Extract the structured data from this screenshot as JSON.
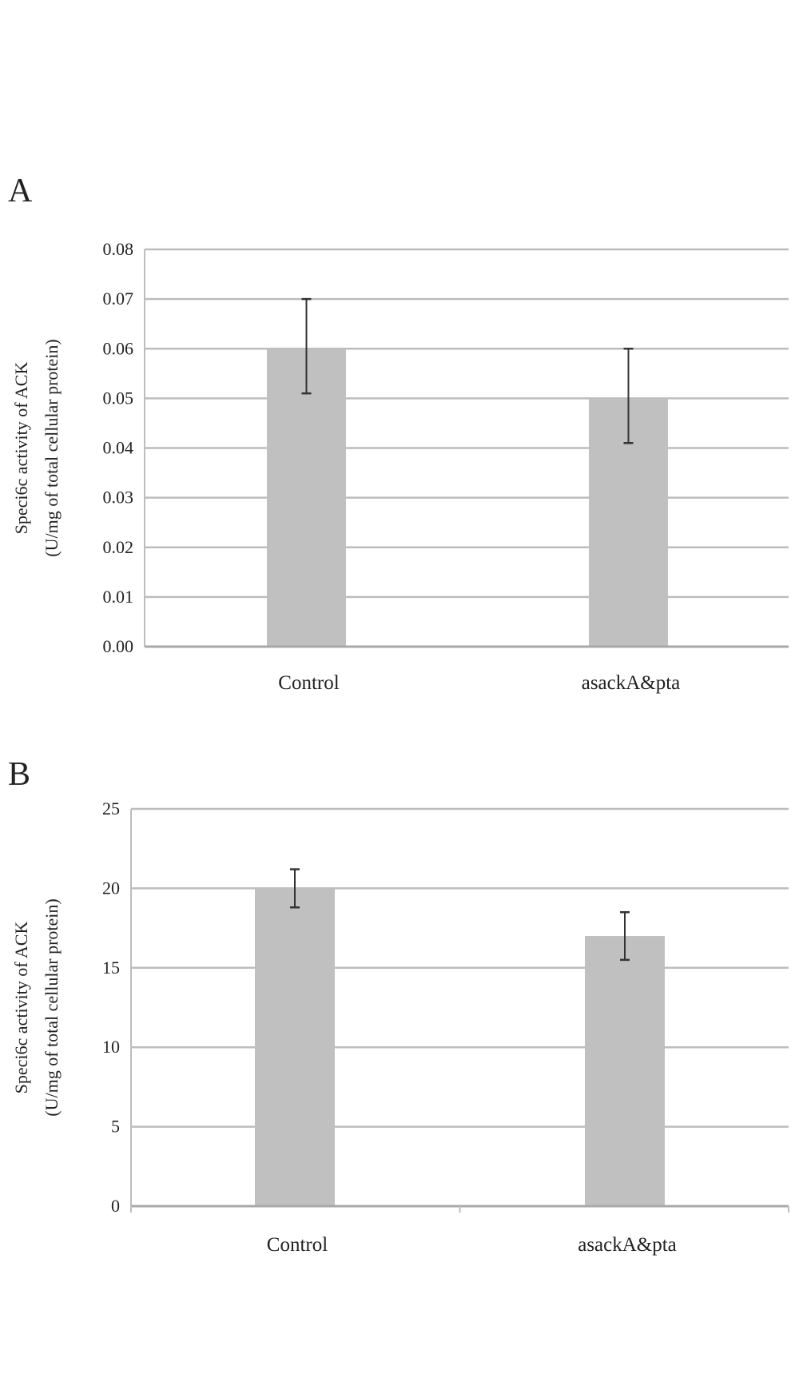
{
  "chart_data": [
    {
      "panel": "A",
      "type": "bar",
      "categories": [
        "Control",
        "asackA&pta"
      ],
      "values": [
        0.06,
        0.05
      ],
      "error_low": [
        0.051,
        0.041
      ],
      "error_high": [
        0.07,
        0.06
      ],
      "ylabel_line1": "Speci6c activity of ACK",
      "ylabel_line2": "(U/mg of total cellular protein)",
      "xlabel": "",
      "ylim": [
        0,
        0.08
      ],
      "yticks": [
        "0.00",
        "0.01",
        "0.02",
        "0.03",
        "0.04",
        "0.05",
        "0.06",
        "0.07",
        "0.08"
      ],
      "grid": true,
      "bar_color": "#c0c0c0",
      "grid_color": "#bdbdbd"
    },
    {
      "panel": "B",
      "type": "bar",
      "categories": [
        "Control",
        "asackA&pta"
      ],
      "values": [
        20,
        17
      ],
      "error_low": [
        18.8,
        15.5
      ],
      "error_high": [
        21.2,
        18.5
      ],
      "ylabel_line1": "Speci6c activity of ACK",
      "ylabel_line2": "(U/mg of total cellular protein)",
      "xlabel": "",
      "ylim": [
        0,
        25
      ],
      "yticks": [
        "0",
        "5",
        "10",
        "15",
        "20",
        "25"
      ],
      "grid": true,
      "bar_color": "#c0c0c0",
      "grid_color": "#bdbdbd"
    }
  ]
}
